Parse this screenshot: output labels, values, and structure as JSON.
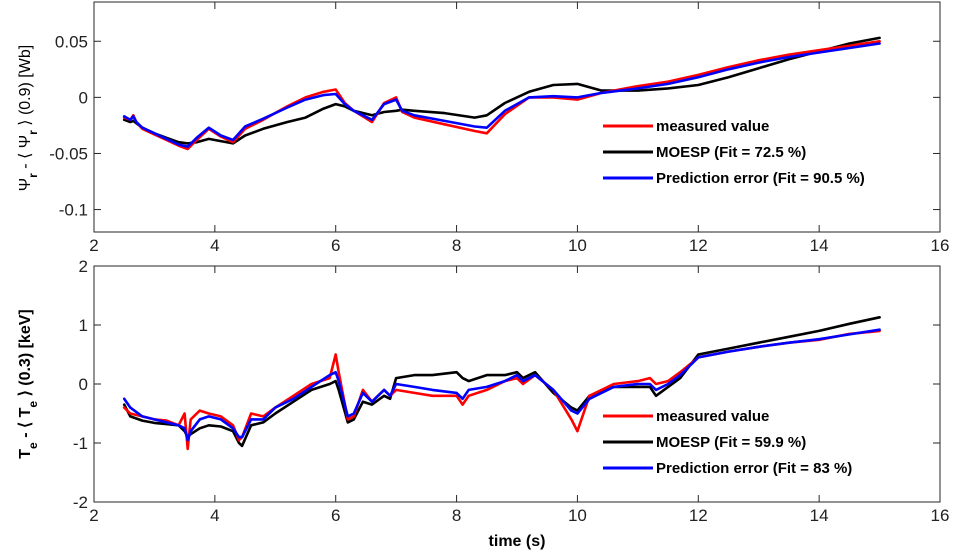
{
  "chart_data": [
    {
      "type": "line",
      "ylabel_parts": [
        "Ψ",
        "r",
        " - ⟨ Ψ",
        "r",
        " ⟩ (0.9) [Wb]"
      ],
      "xlabel": "",
      "xlim": [
        2,
        16
      ],
      "ylim": [
        -0.12,
        0.085
      ],
      "xticks": [
        2,
        4,
        6,
        8,
        10,
        12,
        14,
        16
      ],
      "yticks": [
        -0.1,
        -0.05,
        0,
        0.05
      ],
      "ytick_labels": [
        "-0.1",
        "-0.05",
        "0",
        "0.05"
      ],
      "grid": false,
      "legend_position": "right",
      "series": [
        {
          "name": "measured value",
          "color": "#ff0000",
          "x": [
            2.5,
            2.6,
            2.65,
            2.7,
            2.8,
            3.0,
            3.2,
            3.4,
            3.55,
            3.7,
            3.9,
            4.1,
            4.3,
            4.5,
            4.8,
            5.2,
            5.5,
            5.8,
            6.0,
            6.15,
            6.3,
            6.6,
            6.8,
            7.0,
            7.1,
            7.3,
            7.8,
            8.3,
            8.5,
            8.8,
            9.2,
            9.6,
            10.0,
            10.4,
            11.0,
            11.5,
            12.0,
            12.5,
            13.0,
            13.5,
            14.0,
            14.5,
            15.0
          ],
          "y": [
            -0.018,
            -0.02,
            -0.016,
            -0.022,
            -0.028,
            -0.033,
            -0.038,
            -0.043,
            -0.046,
            -0.038,
            -0.028,
            -0.035,
            -0.04,
            -0.028,
            -0.02,
            -0.008,
            0.0,
            0.005,
            0.007,
            -0.005,
            -0.012,
            -0.022,
            -0.005,
            0.0,
            -0.013,
            -0.018,
            -0.024,
            -0.03,
            -0.032,
            -0.015,
            0.0,
            0.0,
            -0.002,
            0.004,
            0.01,
            0.014,
            0.02,
            0.027,
            0.033,
            0.038,
            0.042,
            0.046,
            0.05
          ]
        },
        {
          "name": "MOESP (Fit = 72.5 %)",
          "color": "#000000",
          "x": [
            2.5,
            2.6,
            2.65,
            2.7,
            2.8,
            3.0,
            3.2,
            3.4,
            3.55,
            3.7,
            3.9,
            4.1,
            4.3,
            4.5,
            4.8,
            5.2,
            5.5,
            5.8,
            6.0,
            6.15,
            6.3,
            6.6,
            6.8,
            7.0,
            7.1,
            7.3,
            7.8,
            8.3,
            8.5,
            8.8,
            9.2,
            9.6,
            10.0,
            10.4,
            11.0,
            11.5,
            12.0,
            12.5,
            13.0,
            13.5,
            14.0,
            14.5,
            15.0
          ],
          "y": [
            -0.02,
            -0.022,
            -0.021,
            -0.023,
            -0.027,
            -0.032,
            -0.036,
            -0.04,
            -0.041,
            -0.04,
            -0.037,
            -0.039,
            -0.041,
            -0.034,
            -0.028,
            -0.022,
            -0.018,
            -0.01,
            -0.006,
            -0.008,
            -0.012,
            -0.016,
            -0.013,
            -0.012,
            -0.011,
            -0.012,
            -0.014,
            -0.018,
            -0.016,
            -0.005,
            0.005,
            0.011,
            0.012,
            0.006,
            0.006,
            0.008,
            0.011,
            0.018,
            0.026,
            0.034,
            0.041,
            0.048,
            0.053
          ]
        },
        {
          "name": "Prediction error (Fit = 90.5 %)",
          "color": "#0000ff",
          "x": [
            2.5,
            2.6,
            2.65,
            2.7,
            2.8,
            3.0,
            3.2,
            3.4,
            3.55,
            3.7,
            3.9,
            4.1,
            4.3,
            4.5,
            4.8,
            5.2,
            5.5,
            5.8,
            6.0,
            6.15,
            6.3,
            6.6,
            6.8,
            7.0,
            7.1,
            7.3,
            7.8,
            8.3,
            8.5,
            8.8,
            9.2,
            9.6,
            10.0,
            10.4,
            11.0,
            11.5,
            12.0,
            12.5,
            13.0,
            13.5,
            14.0,
            14.5,
            15.0
          ],
          "y": [
            -0.017,
            -0.02,
            -0.017,
            -0.022,
            -0.027,
            -0.032,
            -0.037,
            -0.042,
            -0.044,
            -0.036,
            -0.027,
            -0.034,
            -0.038,
            -0.026,
            -0.019,
            -0.009,
            -0.002,
            0.002,
            0.003,
            -0.006,
            -0.012,
            -0.02,
            -0.006,
            -0.002,
            -0.012,
            -0.016,
            -0.021,
            -0.026,
            -0.027,
            -0.012,
            0.0,
            0.001,
            0.0,
            0.004,
            0.008,
            0.012,
            0.018,
            0.025,
            0.031,
            0.036,
            0.04,
            0.044,
            0.048
          ]
        }
      ]
    },
    {
      "type": "line",
      "ylabel_parts": [
        "T",
        "e",
        " - ⟨ T",
        "e",
        " ⟩ (0.3) [keV]"
      ],
      "xlabel": "time (s)",
      "xlim": [
        2,
        16
      ],
      "ylim": [
        -2,
        2
      ],
      "xticks": [
        2,
        4,
        6,
        8,
        10,
        12,
        14,
        16
      ],
      "yticks": [
        -2,
        -1,
        0,
        1,
        2
      ],
      "ytick_labels": [
        "-2",
        "-1",
        "0",
        "1",
        "2"
      ],
      "grid": false,
      "legend_position": "bottom-right",
      "series": [
        {
          "name": "measured value",
          "color": "#ff0000",
          "x": [
            2.5,
            2.6,
            2.8,
            3.0,
            3.2,
            3.4,
            3.5,
            3.55,
            3.6,
            3.75,
            3.9,
            4.1,
            4.3,
            4.4,
            4.45,
            4.6,
            4.8,
            5.0,
            5.3,
            5.6,
            5.9,
            6.0,
            6.05,
            6.2,
            6.3,
            6.45,
            6.6,
            6.8,
            6.9,
            7.0,
            7.3,
            7.6,
            8.0,
            8.1,
            8.2,
            8.5,
            8.8,
            9.0,
            9.1,
            9.3,
            9.6,
            9.9,
            10.0,
            10.2,
            10.6,
            11.0,
            11.2,
            11.3,
            11.5,
            11.7,
            12.0,
            12.5,
            13.0,
            13.5,
            14.0,
            14.5,
            15.0
          ],
          "y": [
            -0.4,
            -0.5,
            -0.55,
            -0.6,
            -0.62,
            -0.7,
            -0.5,
            -1.1,
            -0.6,
            -0.45,
            -0.5,
            -0.55,
            -0.7,
            -0.95,
            -0.9,
            -0.5,
            -0.55,
            -0.4,
            -0.2,
            0.0,
            0.1,
            0.5,
            0.2,
            -0.6,
            -0.55,
            -0.1,
            -0.3,
            -0.1,
            -0.2,
            -0.1,
            -0.15,
            -0.2,
            -0.2,
            -0.35,
            -0.2,
            -0.1,
            0.05,
            0.1,
            0.0,
            0.15,
            -0.1,
            -0.6,
            -0.8,
            -0.2,
            0.0,
            0.05,
            0.1,
            0.0,
            0.05,
            0.2,
            0.45,
            0.55,
            0.63,
            0.7,
            0.75,
            0.85,
            0.9
          ]
        },
        {
          "name": "MOESP (Fit = 59.9 %)",
          "color": "#000000",
          "x": [
            2.5,
            2.6,
            2.8,
            3.0,
            3.2,
            3.4,
            3.5,
            3.55,
            3.6,
            3.75,
            3.9,
            4.1,
            4.3,
            4.4,
            4.45,
            4.6,
            4.8,
            5.0,
            5.3,
            5.6,
            5.9,
            6.0,
            6.05,
            6.2,
            6.3,
            6.45,
            6.6,
            6.8,
            6.9,
            7.0,
            7.3,
            7.6,
            8.0,
            8.1,
            8.2,
            8.5,
            8.8,
            9.0,
            9.1,
            9.3,
            9.6,
            9.9,
            10.0,
            10.2,
            10.6,
            11.0,
            11.2,
            11.3,
            11.5,
            11.7,
            12.0,
            12.5,
            13.0,
            13.5,
            14.0,
            14.5,
            15.0
          ],
          "y": [
            -0.35,
            -0.55,
            -0.62,
            -0.66,
            -0.68,
            -0.7,
            -0.8,
            -0.9,
            -0.85,
            -0.75,
            -0.7,
            -0.72,
            -0.8,
            -1.0,
            -1.05,
            -0.7,
            -0.65,
            -0.5,
            -0.3,
            -0.1,
            0.0,
            0.05,
            -0.1,
            -0.65,
            -0.6,
            -0.3,
            -0.35,
            -0.2,
            -0.25,
            0.1,
            0.15,
            0.15,
            0.2,
            0.1,
            0.05,
            0.15,
            0.15,
            0.2,
            0.1,
            0.2,
            -0.15,
            -0.4,
            -0.45,
            -0.2,
            -0.05,
            -0.05,
            -0.05,
            -0.2,
            -0.05,
            0.1,
            0.5,
            0.6,
            0.7,
            0.8,
            0.9,
            1.02,
            1.13
          ]
        },
        {
          "name": "Prediction error (Fit = 83 %)",
          "color": "#0000ff",
          "x": [
            2.5,
            2.6,
            2.8,
            3.0,
            3.2,
            3.4,
            3.5,
            3.55,
            3.6,
            3.75,
            3.9,
            4.1,
            4.3,
            4.4,
            4.45,
            4.6,
            4.8,
            5.0,
            5.3,
            5.6,
            5.9,
            6.0,
            6.05,
            6.2,
            6.3,
            6.45,
            6.6,
            6.8,
            6.9,
            7.0,
            7.3,
            7.6,
            8.0,
            8.1,
            8.2,
            8.5,
            8.8,
            9.0,
            9.1,
            9.3,
            9.6,
            9.9,
            10.0,
            10.2,
            10.6,
            11.0,
            11.2,
            11.3,
            11.5,
            11.7,
            12.0,
            12.5,
            13.0,
            13.5,
            14.0,
            14.5,
            15.0
          ],
          "y": [
            -0.25,
            -0.4,
            -0.55,
            -0.6,
            -0.65,
            -0.7,
            -0.75,
            -0.95,
            -0.8,
            -0.6,
            -0.55,
            -0.6,
            -0.75,
            -0.9,
            -0.9,
            -0.6,
            -0.6,
            -0.4,
            -0.25,
            -0.05,
            0.15,
            0.2,
            0.05,
            -0.55,
            -0.5,
            -0.15,
            -0.3,
            -0.1,
            -0.2,
            0.0,
            -0.05,
            -0.1,
            -0.15,
            -0.25,
            -0.1,
            -0.05,
            0.05,
            0.15,
            0.05,
            0.15,
            -0.1,
            -0.45,
            -0.5,
            -0.25,
            -0.05,
            0.0,
            0.0,
            -0.1,
            0.0,
            0.15,
            0.45,
            0.55,
            0.63,
            0.7,
            0.76,
            0.84,
            0.92
          ]
        }
      ]
    }
  ]
}
